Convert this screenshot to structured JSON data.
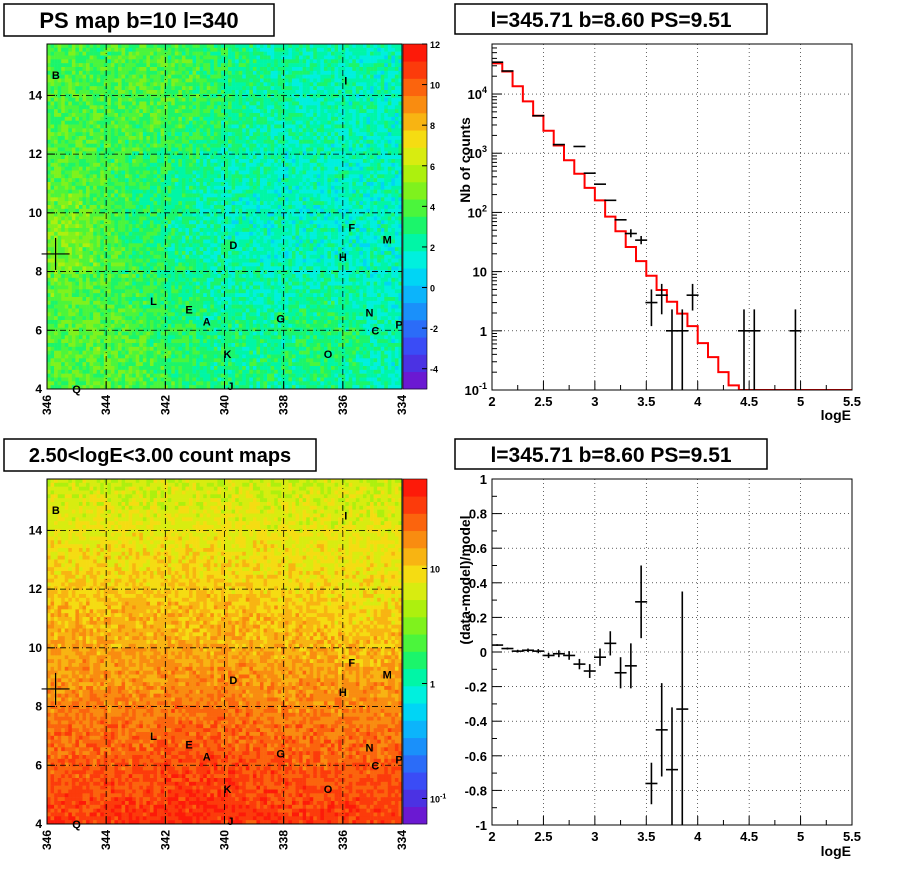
{
  "chart_data": [
    {
      "type": "heatmap",
      "title": "PS map b=10 l=340",
      "xlabel": "",
      "ylabel": "",
      "x_ticks": [
        "346",
        "344",
        "342",
        "340",
        "338",
        "336",
        "334"
      ],
      "y_ticks": [
        "4",
        "6",
        "8",
        "10",
        "12",
        "14"
      ],
      "xlim": [
        346,
        334
      ],
      "ylim": [
        4,
        15.75
      ],
      "x_reversed": true,
      "grid": true,
      "z_scale": "linear",
      "zlim": [
        -5,
        12
      ],
      "z_ticks": [
        "12",
        "10",
        "8",
        "6",
        "4",
        "2",
        "0",
        "-2",
        "-4"
      ],
      "z_values": [
        12,
        10,
        8,
        6,
        4,
        2,
        0,
        -2,
        -4
      ],
      "sources": [
        {
          "label": "B",
          "l": 345.7,
          "b": 14.7
        },
        {
          "label": "I",
          "l": 335.9,
          "b": 14.5
        },
        {
          "label": "F",
          "l": 335.7,
          "b": 9.5
        },
        {
          "label": "M",
          "l": 334.5,
          "b": 9.1
        },
        {
          "label": "D",
          "l": 339.7,
          "b": 8.9
        },
        {
          "label": "H",
          "l": 336.0,
          "b": 8.5
        },
        {
          "label": "L",
          "l": 342.4,
          "b": 7.0
        },
        {
          "label": "E",
          "l": 341.2,
          "b": 6.7
        },
        {
          "label": "N",
          "l": 335.1,
          "b": 6.6
        },
        {
          "label": "A",
          "l": 340.6,
          "b": 6.3
        },
        {
          "label": "G",
          "l": 338.1,
          "b": 6.4
        },
        {
          "label": "C",
          "l": 334.9,
          "b": 6.0
        },
        {
          "label": "P",
          "l": 334.1,
          "b": 6.2
        },
        {
          "label": "K",
          "l": 339.9,
          "b": 5.2
        },
        {
          "label": "O",
          "l": 336.5,
          "b": 5.2
        },
        {
          "label": "J",
          "l": 339.8,
          "b": 4.1
        },
        {
          "label": "Q",
          "l": 345.0,
          "b": 4.0
        }
      ],
      "marker": {
        "l": 345.71,
        "b": 8.6
      }
    },
    {
      "type": "line",
      "title": "l=345.71 b=8.60 PS=9.51",
      "xlabel": "logE",
      "ylabel": "Nb of counts",
      "xlim": [
        2,
        5.5
      ],
      "ylim": [
        0.1,
        70000
      ],
      "y_scale": "log",
      "grid": true,
      "x_ticks": [
        "2",
        "2.5",
        "3",
        "3.5",
        "4",
        "4.5",
        "5",
        "5.5"
      ],
      "y_ticks": [
        {
          "base": "10",
          "exp": "-1",
          "value": 0.1
        },
        {
          "base": "1",
          "exp": "",
          "value": 1
        },
        {
          "base": "10",
          "exp": "",
          "value": 10
        },
        {
          "base": "10",
          "exp": "2",
          "value": 100
        },
        {
          "base": "10",
          "exp": "3",
          "value": 1000
        },
        {
          "base": "10",
          "exp": "4",
          "value": 10000
        }
      ],
      "series": [
        {
          "kind": "step",
          "color": "#ff0000",
          "bin_edges": [
            2.0,
            2.1,
            2.2,
            2.3,
            2.4,
            2.5,
            2.6,
            2.7,
            2.8,
            2.9,
            3.0,
            3.1,
            3.2,
            3.3,
            3.4,
            3.5,
            3.6,
            3.7,
            3.8,
            3.9,
            4.0,
            4.1,
            4.2,
            4.3,
            4.4,
            5.5
          ],
          "values": [
            33000,
            24000,
            13500,
            7500,
            4300,
            2400,
            1350,
            760,
            450,
            260,
            160,
            85,
            48,
            26,
            15,
            8.5,
            4.9,
            3.1,
            1.95,
            1.2,
            0.62,
            0.36,
            0.2,
            0.12,
            0.1
          ]
        },
        {
          "kind": "errorbar",
          "color": "#000000",
          "points": [
            {
              "x": 2.05,
              "y": 34500,
              "ylo": 34500,
              "yhi": 34500
            },
            {
              "x": 2.15,
              "y": 24500,
              "ylo": 24500,
              "yhi": 24500
            },
            {
              "x": 2.45,
              "y": 4300,
              "ylo": 4300,
              "yhi": 4300
            },
            {
              "x": 2.65,
              "y": 1400,
              "ylo": 1400,
              "yhi": 1400
            },
            {
              "x": 2.85,
              "y": 1300,
              "ylo": 1300,
              "yhi": 1300
            },
            {
              "x": 2.95,
              "y": 460,
              "ylo": 460,
              "yhi": 460
            },
            {
              "x": 3.05,
              "y": 300,
              "ylo": 300,
              "yhi": 300
            },
            {
              "x": 3.15,
              "y": 160,
              "ylo": 160,
              "yhi": 160
            },
            {
              "x": 3.25,
              "y": 75,
              "ylo": 75,
              "yhi": 75
            },
            {
              "x": 3.35,
              "y": 44,
              "ylo": 38,
              "yhi": 52
            },
            {
              "x": 3.45,
              "y": 34,
              "ylo": 29,
              "yhi": 40
            },
            {
              "x": 3.55,
              "y": 3,
              "ylo": 1.2,
              "yhi": 5
            },
            {
              "x": 3.65,
              "y": 4,
              "ylo": 1.9,
              "yhi": 6.2
            },
            {
              "x": 3.75,
              "y": 1,
              "ylo": 0.1,
              "yhi": 2.3
            },
            {
              "x": 3.85,
              "y": 1,
              "ylo": 0.1,
              "yhi": 2.3
            },
            {
              "x": 3.95,
              "y": 4,
              "ylo": 2.2,
              "yhi": 6.2
            },
            {
              "x": 4.45,
              "y": 1,
              "ylo": 0.1,
              "yhi": 2.3
            },
            {
              "x": 4.55,
              "y": 1,
              "ylo": 0.1,
              "yhi": 2.3
            },
            {
              "x": 4.95,
              "y": 1,
              "ylo": 0.1,
              "yhi": 2.3
            }
          ]
        }
      ]
    },
    {
      "type": "heatmap",
      "title": "2.50<logE<3.00 count maps",
      "xlabel": "",
      "ylabel": "",
      "x_ticks": [
        "346",
        "344",
        "342",
        "340",
        "338",
        "336",
        "334"
      ],
      "y_ticks": [
        "4",
        "6",
        "8",
        "10",
        "12",
        "14"
      ],
      "xlim": [
        346,
        334
      ],
      "ylim": [
        4,
        15.75
      ],
      "x_reversed": true,
      "grid": true,
      "z_scale": "log",
      "z_ticks": [
        {
          "base": "10",
          "exp": "",
          "value": 10
        },
        {
          "base": "1",
          "exp": "",
          "value": 1
        },
        {
          "base": "10",
          "exp": "-1",
          "value": 0.1
        }
      ],
      "sources": [
        {
          "label": "B",
          "l": 345.7,
          "b": 14.7
        },
        {
          "label": "I",
          "l": 335.9,
          "b": 14.5
        },
        {
          "label": "F",
          "l": 335.7,
          "b": 9.5
        },
        {
          "label": "M",
          "l": 334.5,
          "b": 9.1
        },
        {
          "label": "D",
          "l": 339.7,
          "b": 8.9
        },
        {
          "label": "H",
          "l": 336.0,
          "b": 8.5
        },
        {
          "label": "L",
          "l": 342.4,
          "b": 7.0
        },
        {
          "label": "E",
          "l": 341.2,
          "b": 6.7
        },
        {
          "label": "N",
          "l": 335.1,
          "b": 6.6
        },
        {
          "label": "A",
          "l": 340.6,
          "b": 6.3
        },
        {
          "label": "G",
          "l": 338.1,
          "b": 6.4
        },
        {
          "label": "C",
          "l": 334.9,
          "b": 6.0
        },
        {
          "label": "P",
          "l": 334.1,
          "b": 6.2
        },
        {
          "label": "K",
          "l": 339.9,
          "b": 5.2
        },
        {
          "label": "O",
          "l": 336.5,
          "b": 5.2
        },
        {
          "label": "J",
          "l": 339.8,
          "b": 4.1
        },
        {
          "label": "Q",
          "l": 345.0,
          "b": 4.0
        }
      ],
      "marker": {
        "l": 345.71,
        "b": 8.6
      }
    },
    {
      "type": "scatter",
      "title": "l=345.71 b=8.60 PS=9.51",
      "xlabel": "logE",
      "ylabel": "(data-model)/model",
      "xlim": [
        2,
        5.5
      ],
      "ylim": [
        -1,
        1
      ],
      "grid": true,
      "x_ticks": [
        "2",
        "2.5",
        "3",
        "3.5",
        "4",
        "4.5",
        "5",
        "5.5"
      ],
      "y_ticks": [
        "1",
        "0.8",
        "0.6",
        "0.4",
        "0.2",
        "0",
        "-0.2",
        "-0.4",
        "-0.6",
        "-0.8",
        "-1"
      ],
      "y_tick_values": [
        1,
        0.8,
        0.6,
        0.4,
        0.2,
        0,
        -0.2,
        -0.4,
        -0.6,
        -0.8,
        -1
      ],
      "series": [
        {
          "kind": "errorbar",
          "color": "#000000",
          "points": [
            {
              "x": 2.05,
              "y": 0.04,
              "err": 0.005
            },
            {
              "x": 2.15,
              "y": 0.02,
              "err": 0.006
            },
            {
              "x": 2.25,
              "y": 0.005,
              "err": 0.008
            },
            {
              "x": 2.35,
              "y": 0.01,
              "err": 0.01
            },
            {
              "x": 2.45,
              "y": 0.005,
              "err": 0.012
            },
            {
              "x": 2.55,
              "y": -0.02,
              "err": 0.015
            },
            {
              "x": 2.65,
              "y": -0.01,
              "err": 0.02
            },
            {
              "x": 2.75,
              "y": -0.02,
              "err": 0.025
            },
            {
              "x": 2.85,
              "y": -0.07,
              "err": 0.03
            },
            {
              "x": 2.95,
              "y": -0.11,
              "err": 0.04
            },
            {
              "x": 3.05,
              "y": -0.03,
              "err": 0.05
            },
            {
              "x": 3.15,
              "y": 0.05,
              "err": 0.07
            },
            {
              "x": 3.25,
              "y": -0.12,
              "err": 0.09
            },
            {
              "x": 3.35,
              "y": -0.08,
              "err": 0.13
            },
            {
              "x": 3.45,
              "y": 0.29,
              "err": 0.21
            },
            {
              "x": 3.55,
              "y": -0.76,
              "err": 0.12
            },
            {
              "x": 3.65,
              "y": -0.45,
              "err": 0.27
            },
            {
              "x": 3.75,
              "y": -0.68,
              "err": 0.36
            },
            {
              "x": 3.85,
              "y": -0.33,
              "err": 0.68
            }
          ]
        }
      ]
    }
  ]
}
